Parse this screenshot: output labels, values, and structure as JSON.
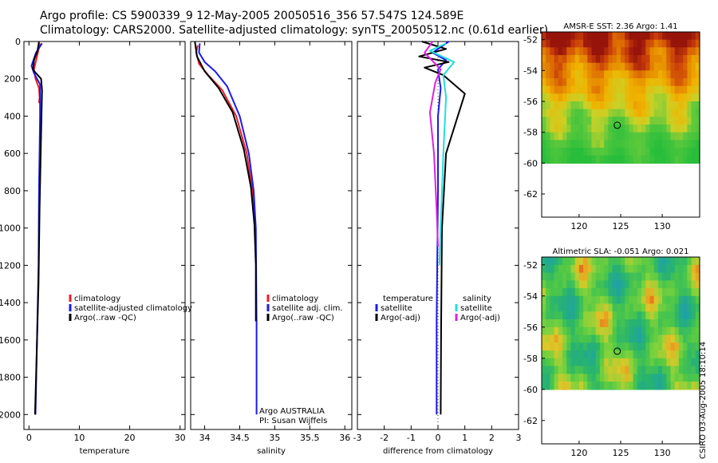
{
  "header": {
    "line1": "Argo profile: CS 5900339_9 12-May-2005 20050516_356 57.547S 124.589E",
    "line2": "Climatology: CARS2000. Satellite-adjusted climatology: synTS_20050512.nc (0.61d earlier)"
  },
  "signature": "CSIRO 03-Aug-2005 18:10:14",
  "colors": {
    "red": "#ee1c24",
    "blue": "#1a1aee",
    "black": "#000000",
    "cyan": "#22dddd",
    "magenta": "#dd22dd"
  },
  "chart_data": [
    {
      "type": "line",
      "xlabel": "temperature",
      "ylabel": "",
      "xlim": [
        -1,
        31
      ],
      "ylim": [
        2080,
        0
      ],
      "xticks": [
        "0",
        "10",
        "20",
        "30"
      ],
      "xtick_values": [
        0,
        10,
        20,
        30
      ],
      "yticks": [
        "0",
        "200",
        "400",
        "600",
        "800",
        "1000",
        "1200",
        "1400",
        "1600",
        "1800",
        "2000"
      ],
      "ytick_values": [
        0,
        200,
        400,
        600,
        800,
        1000,
        1200,
        1400,
        1600,
        1800,
        2000
      ],
      "legend": [
        "climatology",
        "satellite-adjusted climatology",
        "Argo(..raw -QC)"
      ],
      "series": [
        {
          "name": "climatology",
          "color": "red",
          "x": [
            2.2,
            1.6,
            1.0,
            1.3,
            2.0,
            2.1,
            2.0
          ],
          "y": [
            10,
            80,
            150,
            200,
            250,
            300,
            330
          ]
        },
        {
          "name": "satellite-adjusted climatology",
          "color": "blue",
          "x": [
            2.6,
            1.4,
            0.5,
            1.0,
            2.2,
            2.2,
            2.0,
            1.9,
            1.6,
            1.3
          ],
          "y": [
            10,
            60,
            130,
            170,
            230,
            400,
            800,
            1200,
            1600,
            2000
          ]
        },
        {
          "name": "Argo(..raw -QC)",
          "color": "black",
          "x": [
            2.0,
            1.7,
            1.0,
            0.8,
            1.4,
            2.4,
            2.6,
            2.4,
            2.1,
            1.9,
            1.5,
            1.2
          ],
          "y": [
            0,
            50,
            100,
            150,
            170,
            200,
            260,
            500,
            900,
            1300,
            1700,
            2000
          ]
        }
      ]
    },
    {
      "type": "line",
      "xlabel": "salinity",
      "xlim": [
        33.8,
        36.1
      ],
      "ylim": [
        2080,
        0
      ],
      "xticks": [
        "34",
        "34.5",
        "35",
        "35.5",
        "36"
      ],
      "xtick_values": [
        34,
        34.5,
        35,
        35.5,
        36
      ],
      "legend": [
        "climatology",
        "satellite adj. clim.",
        "Argo(..raw -QC)"
      ],
      "annotation": [
        "Argo AUSTRALIA",
        "PI: Susan Wijffels"
      ],
      "series": [
        {
          "name": "climatology",
          "color": "red",
          "x": [
            33.9,
            33.88,
            33.92,
            34.05,
            34.25,
            34.45,
            34.6,
            34.68,
            34.72
          ],
          "y": [
            20,
            60,
            120,
            180,
            260,
            400,
            600,
            800,
            1000
          ]
        },
        {
          "name": "satellite adj. clim.",
          "color": "blue",
          "x": [
            33.93,
            33.92,
            34.0,
            34.15,
            34.32,
            34.5,
            34.63,
            34.7,
            34.73,
            34.74,
            34.74
          ],
          "y": [
            10,
            60,
            110,
            160,
            240,
            400,
            600,
            800,
            1000,
            1500,
            2000
          ]
        },
        {
          "name": "Argo(..raw -QC)",
          "color": "black",
          "x": [
            33.86,
            33.89,
            34.0,
            34.2,
            34.4,
            34.56,
            34.66,
            34.71,
            34.73,
            34.73
          ],
          "y": [
            0,
            80,
            160,
            250,
            380,
            580,
            780,
            980,
            1200,
            1500
          ]
        }
      ]
    },
    {
      "type": "line",
      "xlabel": "difference from climatology",
      "xlim": [
        -3,
        3
      ],
      "ylim": [
        2080,
        0
      ],
      "xticks": [
        "-3",
        "-2",
        "-1",
        "0",
        "1",
        "2",
        "3"
      ],
      "xtick_values": [
        -3,
        -2,
        -1,
        0,
        1,
        2,
        3
      ],
      "legend": [
        "temperature",
        "satellite",
        "Argo(-adj)",
        "salinity",
        "satellite",
        "Argo(-adj)"
      ],
      "series": [
        {
          "name": "temperature satellite",
          "color": "blue",
          "x": [
            0.4,
            -0.2,
            0.3,
            0.0,
            0.1,
            0.0,
            0.0,
            -0.05,
            -0.05
          ],
          "y": [
            0,
            60,
            100,
            150,
            250,
            400,
            800,
            1500,
            2000
          ]
        },
        {
          "name": "temperature Argo(-adj)",
          "color": "black",
          "x": [
            -0.6,
            0.3,
            -0.7,
            0.4,
            -0.5,
            0.2,
            1.0,
            0.3,
            0.15,
            0.12,
            0.1
          ],
          "y": [
            0,
            40,
            80,
            110,
            140,
            180,
            280,
            600,
            1000,
            1500,
            2000
          ]
        },
        {
          "name": "salinity satellite",
          "color": "cyan",
          "x": [
            0.3,
            -0.3,
            0.6,
            0.2,
            0.3,
            0.2,
            0.1,
            0.05
          ],
          "y": [
            10,
            50,
            110,
            180,
            300,
            600,
            1000,
            1200
          ]
        },
        {
          "name": "salinity Argo(-adj)",
          "color": "magenta",
          "x": [
            -0.2,
            -0.5,
            0.1,
            -0.1,
            -0.3,
            -0.15,
            -0.05,
            0.0
          ],
          "y": [
            0,
            60,
            150,
            220,
            380,
            600,
            900,
            1100
          ]
        }
      ]
    },
    {
      "type": "heatmap",
      "title": "AMSR-E SST: 2.36 Argo: 1.41",
      "xlim": [
        115.5,
        134.5
      ],
      "ylim": [
        -63.5,
        -51.5
      ],
      "xticks": [
        "120",
        "125",
        "130"
      ],
      "xtick_values": [
        120,
        125,
        130
      ],
      "yticks": [
        "-52",
        "-54",
        "-56",
        "-58",
        "-60",
        "-62"
      ],
      "ytick_values": [
        -52,
        -54,
        -56,
        -58,
        -60,
        -62
      ],
      "data_lat_range": [
        -60,
        -51.5
      ],
      "marker": {
        "lon": 124.589,
        "lat": -57.547
      }
    },
    {
      "type": "heatmap",
      "title": "Altimetric SLA: -0.051 Argo: 0.021",
      "xlim": [
        115.5,
        134.5
      ],
      "ylim": [
        -63.5,
        -51.5
      ],
      "xticks": [
        "120",
        "125",
        "130"
      ],
      "xtick_values": [
        120,
        125,
        130
      ],
      "yticks": [
        "-52",
        "-54",
        "-56",
        "-58",
        "-60",
        "-62"
      ],
      "ytick_values": [
        -52,
        -54,
        -56,
        -58,
        -60,
        -62
      ],
      "data_lat_range": [
        -60,
        -51.5
      ],
      "marker": {
        "lon": 124.589,
        "lat": -57.547
      }
    }
  ]
}
